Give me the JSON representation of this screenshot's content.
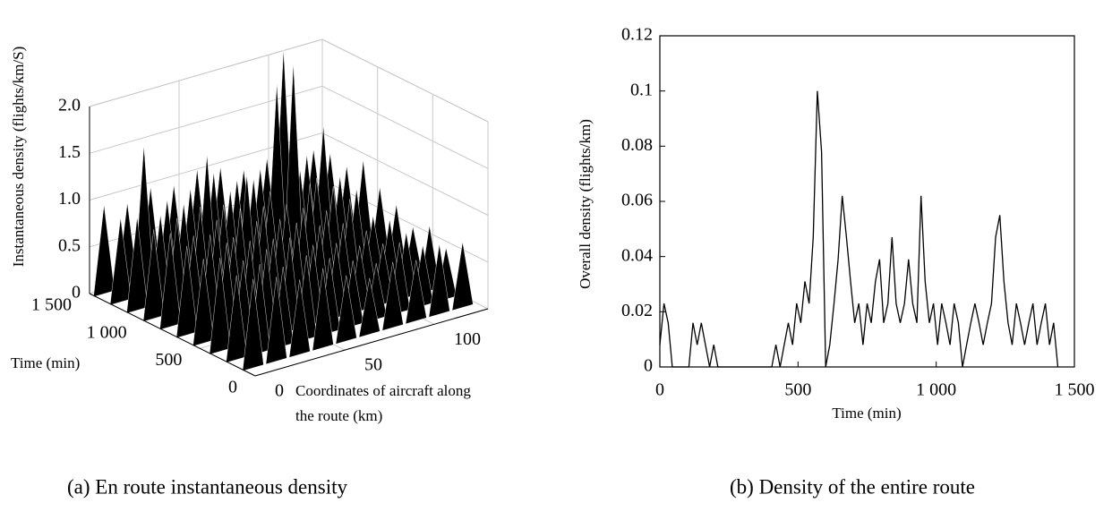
{
  "chart_data": [
    {
      "type": "surface3d",
      "caption": "(a) En route instantaneous density",
      "zlabel": "Instantaneous density (flights/km/S)",
      "ylabel": "Time (min)",
      "xlabel": [
        "Coordinates of aircraft along",
        "the route (km)"
      ],
      "color": "#000000",
      "xlim": [
        0,
        130
      ],
      "xticks": [
        0,
        50,
        100
      ],
      "ylim": [
        0,
        1500
      ],
      "yticks": [
        0,
        500,
        {
          "value": 1000,
          "label": "1 000"
        },
        {
          "value": 1500,
          "label": "1 500"
        }
      ],
      "zlim": [
        0,
        2
      ],
      "zticks": [
        0,
        0.5,
        {
          "value": 1,
          "label": "1.0"
        },
        1.5,
        {
          "value": 2,
          "label": "2.0"
        }
      ],
      "x": [
        5,
        18,
        31,
        44,
        57,
        70,
        83,
        96,
        109,
        122
      ],
      "y": [
        1450,
        1300,
        1150,
        1000,
        850,
        700,
        550,
        400,
        250,
        100
      ],
      "z": [
        [
          0.95,
          0.9,
          1.0,
          0.95,
          1.05,
          1.0,
          0.9,
          0.95,
          1.0,
          0.9
        ],
        [
          0.9,
          1.6,
          0.95,
          1.0,
          1.1,
          0.95,
          1.0,
          2.2,
          1.0,
          0.95
        ],
        [
          1.0,
          0.95,
          1.0,
          1.45,
          1.0,
          1.05,
          2.0,
          1.0,
          1.4,
          0.9
        ],
        [
          0.95,
          1.0,
          1.05,
          1.0,
          1.25,
          1.0,
          2.3,
          1.0,
          0.95,
          1.05
        ],
        [
          1.0,
          0.9,
          1.0,
          1.05,
          1.0,
          0.95,
          1.1,
          1.0,
          0.9,
          0.85
        ],
        [
          0.95,
          1.0,
          0.9,
          1.0,
          0.95,
          1.0,
          0.9,
          0.95,
          0.7,
          0.75
        ],
        [
          0.9,
          1.0,
          0.95,
          0.9,
          1.0,
          0.9,
          0.85,
          0.7,
          0.75,
          0.6
        ],
        [
          1.0,
          0.9,
          0.95,
          1.0,
          0.85,
          0.8,
          0.7,
          0.65,
          0.7,
          0.7
        ],
        [
          0.9,
          0.95,
          0.85,
          0.9,
          0.8,
          0.7,
          0.6,
          0.75,
          0.65,
          0.55
        ],
        [
          0.95,
          0.9,
          0.8,
          0.85,
          0.7,
          0.6,
          0.7,
          0.65,
          0.75,
          0.7
        ]
      ]
    },
    {
      "type": "line",
      "caption": "(b) Density of the entire route",
      "xlabel": "Time (min)",
      "ylabel": "Overall density (flights/km)",
      "color": "#000000",
      "xlim": [
        0,
        1500
      ],
      "xticks": [
        0,
        500,
        {
          "value": 1000,
          "label": "1 000"
        },
        {
          "value": 1500,
          "label": "1 500"
        }
      ],
      "ylim": [
        0,
        0.12
      ],
      "yticks": [
        0,
        0.02,
        0.04,
        0.06,
        0.08,
        0.1,
        0.12
      ],
      "x": [
        0,
        15,
        30,
        45,
        60,
        75,
        90,
        105,
        120,
        135,
        150,
        165,
        180,
        195,
        210,
        225,
        240,
        255,
        270,
        285,
        300,
        315,
        330,
        345,
        360,
        375,
        390,
        405,
        420,
        435,
        450,
        465,
        480,
        495,
        510,
        525,
        540,
        555,
        570,
        585,
        600,
        615,
        630,
        645,
        660,
        675,
        690,
        705,
        720,
        735,
        750,
        765,
        780,
        795,
        810,
        825,
        840,
        855,
        870,
        885,
        900,
        915,
        930,
        945,
        960,
        975,
        990,
        1005,
        1020,
        1035,
        1050,
        1065,
        1080,
        1095,
        1110,
        1125,
        1140,
        1155,
        1170,
        1185,
        1200,
        1215,
        1230,
        1245,
        1260,
        1275,
        1290,
        1305,
        1320,
        1335,
        1350,
        1365,
        1380,
        1395,
        1410,
        1425,
        1440
      ],
      "values": [
        0.008,
        0.023,
        0.016,
        0,
        0,
        0,
        0,
        0,
        0.016,
        0.008,
        0.016,
        0.008,
        0,
        0.008,
        0,
        0,
        0,
        0,
        0,
        0,
        0,
        0,
        0,
        0,
        0,
        0,
        0,
        0,
        0.008,
        0,
        0.008,
        0.016,
        0.008,
        0.023,
        0.016,
        0.031,
        0.023,
        0.047,
        0.1,
        0.078,
        0,
        0.008,
        0.023,
        0.039,
        0.062,
        0.047,
        0.031,
        0.016,
        0.023,
        0.008,
        0.023,
        0.016,
        0.031,
        0.039,
        0.016,
        0.023,
        0.047,
        0.023,
        0.016,
        0.023,
        0.039,
        0.023,
        0.016,
        0.062,
        0.031,
        0.016,
        0.023,
        0.008,
        0.023,
        0.016,
        0.008,
        0.023,
        0.016,
        0,
        0.008,
        0.016,
        0.023,
        0.016,
        0.008,
        0.016,
        0.023,
        0.047,
        0.055,
        0.031,
        0.016,
        0.008,
        0.023,
        0.016,
        0.008,
        0.016,
        0.023,
        0.008,
        0.016,
        0.023,
        0.008,
        0.016,
        0
      ]
    }
  ]
}
